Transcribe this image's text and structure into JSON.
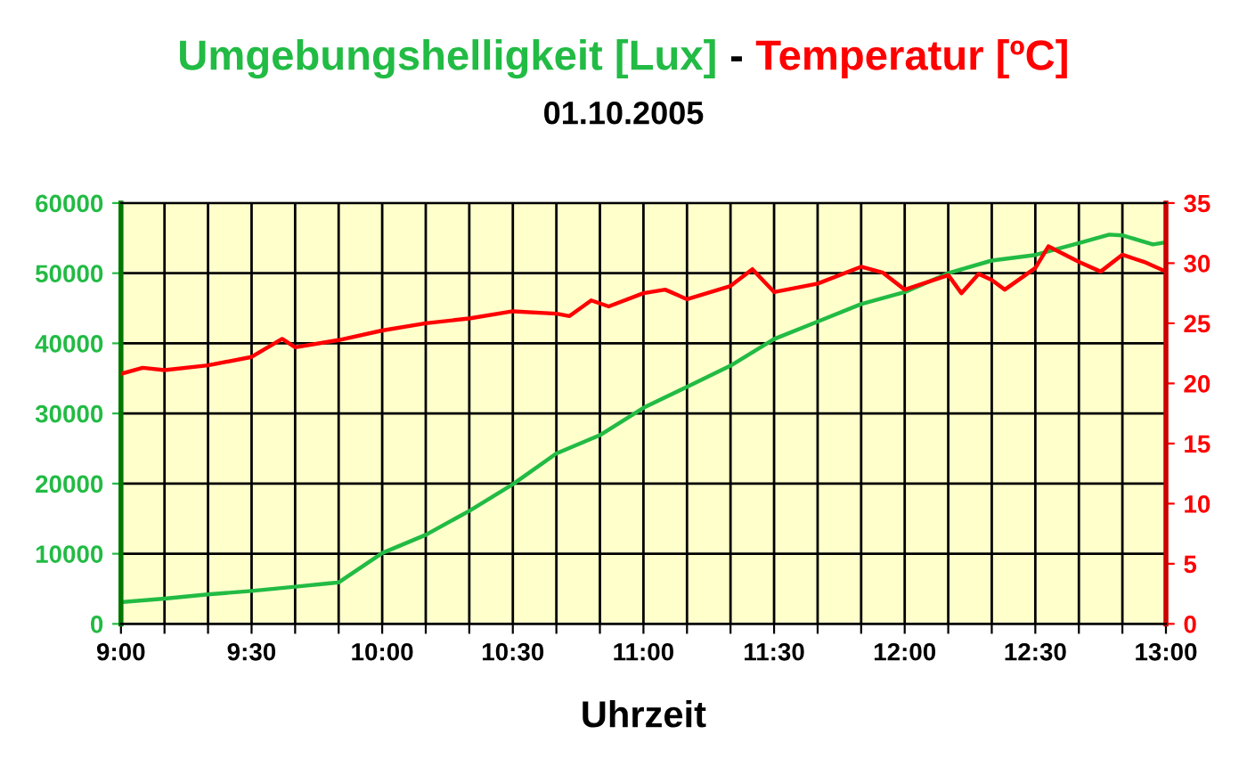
{
  "chart_data": {
    "type": "line",
    "title": "-",
    "subtitle": "01.10.2005",
    "xlabel": "Uhrzeit",
    "legend": "top",
    "grid": true,
    "marker": "none",
    "line_style": "solid",
    "xlim": [
      9,
      13
    ],
    "xticks": [
      {
        "value": 9,
        "label": "9:00"
      },
      {
        "value": 9.1667,
        "label": null
      },
      {
        "value": 9.3333,
        "label": null
      },
      {
        "value": 9.5,
        "label": "9:30"
      },
      {
        "value": 9.6667,
        "label": null
      },
      {
        "value": 9.8333,
        "label": null
      },
      {
        "value": 10,
        "label": "10:00"
      },
      {
        "value": 10.1667,
        "label": null
      },
      {
        "value": 10.3333,
        "label": null
      },
      {
        "value": 10.5,
        "label": "10:30"
      },
      {
        "value": 10.6667,
        "label": null
      },
      {
        "value": 10.8333,
        "label": null
      },
      {
        "value": 11,
        "label": "11:00"
      },
      {
        "value": 11.1667,
        "label": null
      },
      {
        "value": 11.3333,
        "label": null
      },
      {
        "value": 11.5,
        "label": "11:30"
      },
      {
        "value": 11.6667,
        "label": null
      },
      {
        "value": 11.8333,
        "label": null
      },
      {
        "value": 12,
        "label": "12:00"
      },
      {
        "value": 12.1667,
        "label": null
      },
      {
        "value": 12.3333,
        "label": null
      },
      {
        "value": 12.5,
        "label": "12:30"
      },
      {
        "value": 12.6667,
        "label": null
      },
      {
        "value": 12.8333,
        "label": null
      },
      {
        "value": 13,
        "label": "13:00"
      }
    ],
    "ylim": [
      0,
      60000
    ],
    "yticks": [
      0,
      10000,
      20000,
      30000,
      40000,
      50000,
      60000
    ],
    "y2lim": [
      0,
      35
    ],
    "y2ticks": [
      0,
      5,
      10,
      15,
      20,
      25,
      30,
      35
    ],
    "series": [
      {
        "name": "Umgebungshelligkeit [Lux]",
        "color": "#22bb44",
        "x": [
          9.0,
          9.167,
          9.333,
          9.5,
          9.667,
          9.8,
          9.833,
          10.0,
          10.167,
          10.333,
          10.5,
          10.667,
          10.833,
          11.0,
          11.167,
          11.333,
          11.5,
          11.667,
          11.833,
          12.0,
          12.167,
          12.333,
          12.5,
          12.667,
          12.783,
          12.833,
          12.95,
          13.0
        ],
        "values": [
          3100,
          3600,
          4200,
          4700,
          5300,
          5800,
          5900,
          10100,
          12700,
          16100,
          19900,
          24300,
          26900,
          30800,
          33800,
          36800,
          40600,
          43100,
          45600,
          47300,
          50000,
          51800,
          52600,
          54300,
          55500,
          55400,
          54100,
          54400
        ]
      },
      {
        "name": "Temperatur [ºC]",
        "color": "#ff0000",
        "axis": "y2",
        "x": [
          9.0,
          9.083,
          9.167,
          9.333,
          9.5,
          9.617,
          9.667,
          9.833,
          10.0,
          10.167,
          10.333,
          10.5,
          10.667,
          10.717,
          10.8,
          10.867,
          11.0,
          11.083,
          11.167,
          11.333,
          11.417,
          11.5,
          11.667,
          11.833,
          11.917,
          12.0,
          12.167,
          12.217,
          12.283,
          12.333,
          12.383,
          12.5,
          12.55,
          12.667,
          12.75,
          12.833,
          12.917,
          13.0
        ],
        "values": [
          20.8,
          21.3,
          21.1,
          21.5,
          22.2,
          23.7,
          23.0,
          23.6,
          24.4,
          25.0,
          25.4,
          26.0,
          25.8,
          25.6,
          26.9,
          26.4,
          27.5,
          27.8,
          27.0,
          28.1,
          29.5,
          27.6,
          28.3,
          29.7,
          29.2,
          27.8,
          29.0,
          27.5,
          29.1,
          28.6,
          27.8,
          29.6,
          31.4,
          30.1,
          29.3,
          30.7,
          30.1,
          29.3
        ]
      }
    ]
  }
}
